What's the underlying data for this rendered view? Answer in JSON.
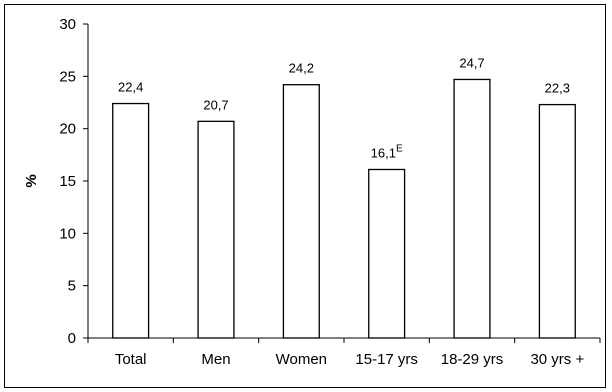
{
  "chart_data": {
    "type": "bar",
    "title": "",
    "xlabel": "",
    "ylabel": "%",
    "ylim": [
      0,
      30
    ],
    "yticks": [
      "0",
      "5",
      "10",
      "15",
      "20",
      "25",
      "30"
    ],
    "categories": [
      "Total",
      "Men",
      "Women",
      "15-17 yrs",
      "18-29 yrs",
      "30 yrs +"
    ],
    "values": [
      22.4,
      20.7,
      24.2,
      16.1,
      24.7,
      22.3
    ],
    "data_labels": [
      "22,4",
      "20,7",
      "24,2",
      "16,1",
      "24,7",
      "22,3"
    ],
    "data_label_superscripts": [
      "",
      "",
      "",
      "E",
      "",
      ""
    ],
    "grid": false,
    "legend": "none",
    "bar_fill": "#ffffff",
    "bar_stroke": "#000000"
  }
}
